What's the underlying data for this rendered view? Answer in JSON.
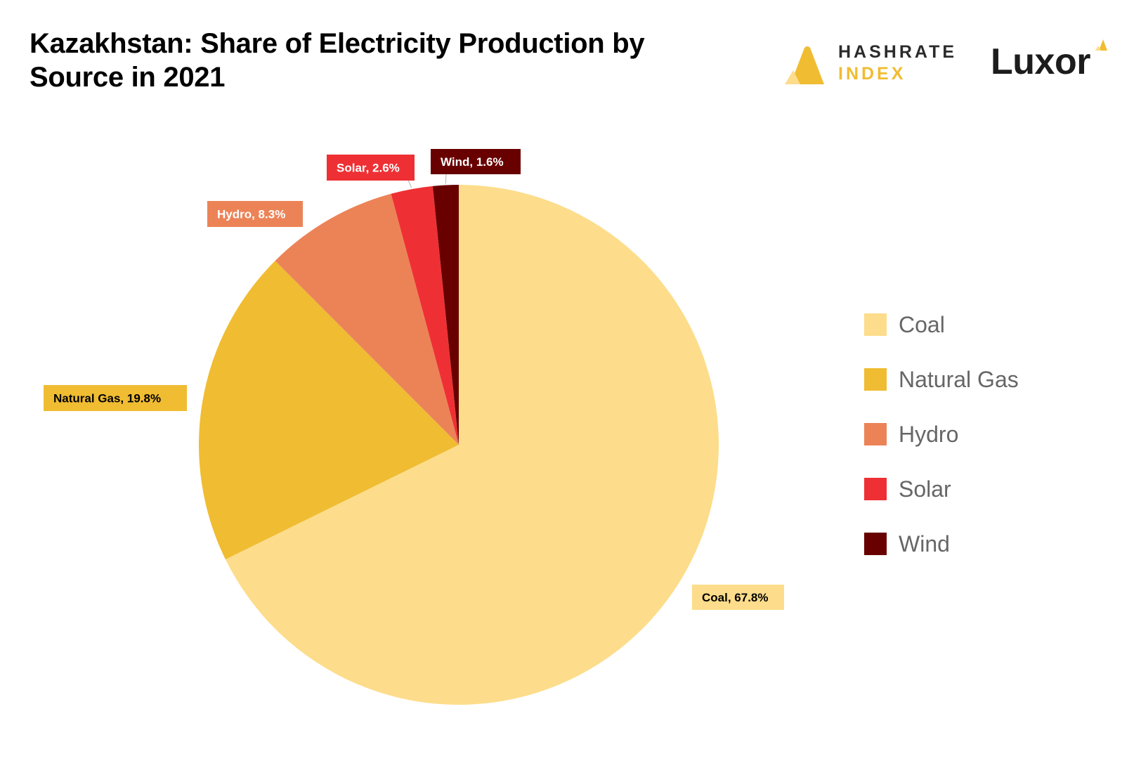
{
  "header": {
    "title": "Kazakhstan: Share of Electricity Production by Source in 2021"
  },
  "brands": {
    "hashrate_line1": "HASHRATE",
    "hashrate_line2": "INDEX",
    "luxor": "Luxor",
    "hashrate_accent": "#f0bc32",
    "luxor_accent": "#f0bc32"
  },
  "chart_data": {
    "type": "pie",
    "title": "Kazakhstan: Share of Electricity Production by Source in 2021",
    "start_angle_deg": 0,
    "direction": "clockwise",
    "legend_position": "right",
    "slices": [
      {
        "name": "Coal",
        "value": 67.8,
        "label": "Coal, 67.8%",
        "color": "#fddd8b",
        "text_color": "#000000"
      },
      {
        "name": "Natural Gas",
        "value": 19.8,
        "label": "Natural Gas, 19.8%",
        "color": "#f0bc32",
        "text_color": "#000000"
      },
      {
        "name": "Hydro",
        "value": 8.3,
        "label": "Hydro, 8.3%",
        "color": "#ec8357",
        "text_color": "#ffffff"
      },
      {
        "name": "Solar",
        "value": 2.6,
        "label": "Solar, 2.6%",
        "color": "#ee3034",
        "text_color": "#ffffff"
      },
      {
        "name": "Wind",
        "value": 1.6,
        "label": "Wind, 1.6%",
        "color": "#680000",
        "text_color": "#ffffff"
      }
    ]
  }
}
